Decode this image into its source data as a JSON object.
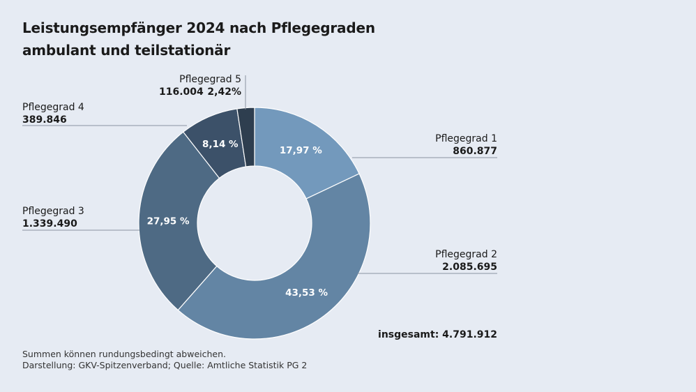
{
  "title": {
    "line1": "Leistungsempfänger 2024 nach Pflegegraden",
    "line2": "ambulant und teilstationär"
  },
  "chart_data": {
    "type": "donut",
    "title": "Leistungsempfänger 2024 nach Pflegegraden ambulant und teilstationär",
    "categories": [
      "Pflegegrad 1",
      "Pflegegrad 2",
      "Pflegegrad 3",
      "Pflegegrad 4",
      "Pflegegrad 5"
    ],
    "values": [
      860877,
      2085695,
      1339490,
      389846,
      116004
    ],
    "value_labels": [
      "860.877",
      "2.085.695",
      "1.339.490",
      "389.846",
      "116.004"
    ],
    "percent_labels": [
      "17,97 %",
      "43,53 %",
      "27,95 %",
      "8,14 %",
      "2,42%"
    ],
    "colors": [
      "#7399bc",
      "#6385a4",
      "#4e6a84",
      "#3c5169",
      "#2e3e4f"
    ],
    "total_label": "insgesamt: 4.791.912"
  },
  "footer": {
    "line1": "Summen können rundungsbedingt abweichen.",
    "line2": "Darstellung: GKV-Spitzenverband; Quelle: Amtliche Statistik PG 2"
  }
}
